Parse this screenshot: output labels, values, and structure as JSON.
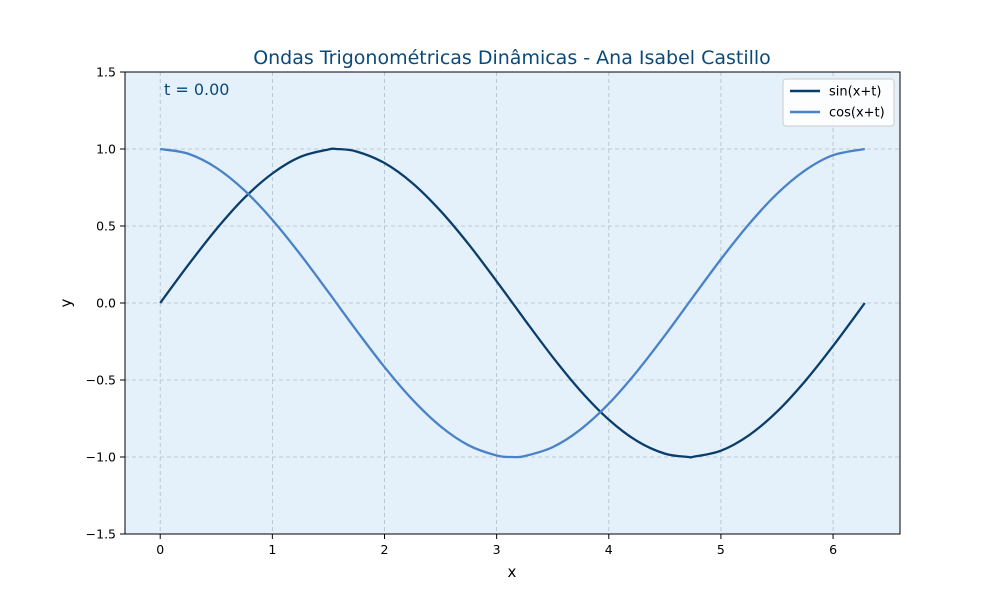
{
  "colors": {
    "plot_background": "#e5f1fa",
    "grid": "#b0bcc8",
    "title": "#0a4a7a",
    "annotation": "#0a4a7a"
  },
  "chart_data": {
    "type": "line",
    "title": "Ondas Trigonométricas Dinâmicas - Ana Isabel Castillo",
    "xlabel": "x",
    "ylabel": "y",
    "xlim": [
      -0.314,
      6.597
    ],
    "ylim": [
      -1.5,
      1.5
    ],
    "xticks": [
      0,
      1,
      2,
      3,
      4,
      5,
      6
    ],
    "xtick_labels": [
      "0",
      "1",
      "2",
      "3",
      "4",
      "5",
      "6"
    ],
    "yticks": [
      -1.5,
      -1.0,
      -0.5,
      0.0,
      0.5,
      1.0,
      1.5
    ],
    "ytick_labels": [
      "−1.5",
      "−1.0",
      "−0.5",
      "0.0",
      "0.5",
      "1.0",
      "1.5"
    ],
    "grid": true,
    "legend_position": "top-right",
    "annotation": "t = 0.00",
    "series": [
      {
        "name": "sin(x+t)",
        "color": "#0a3d6b",
        "x": [
          0,
          0.25,
          0.5,
          0.75,
          1.0,
          1.25,
          1.5,
          1.571,
          1.75,
          2.0,
          2.25,
          2.5,
          2.75,
          3.0,
          3.142,
          3.25,
          3.5,
          3.75,
          4.0,
          4.25,
          4.5,
          4.712,
          4.75,
          5.0,
          5.25,
          5.5,
          5.75,
          6.0,
          6.283
        ],
        "y": [
          0,
          0.247,
          0.479,
          0.682,
          0.841,
          0.949,
          0.997,
          1.0,
          0.984,
          0.909,
          0.778,
          0.598,
          0.382,
          0.141,
          0,
          -0.108,
          -0.351,
          -0.572,
          -0.757,
          -0.895,
          -0.978,
          -1.0,
          -0.999,
          -0.959,
          -0.859,
          -0.706,
          -0.508,
          -0.279,
          0
        ]
      },
      {
        "name": "cos(x+t)",
        "color": "#4a82c8",
        "x": [
          0,
          0.25,
          0.5,
          0.75,
          1.0,
          1.25,
          1.5,
          1.571,
          1.75,
          2.0,
          2.25,
          2.5,
          2.75,
          3.0,
          3.142,
          3.25,
          3.5,
          3.75,
          4.0,
          4.25,
          4.5,
          4.712,
          4.75,
          5.0,
          5.25,
          5.5,
          5.75,
          6.0,
          6.283
        ],
        "y": [
          1.0,
          0.969,
          0.878,
          0.732,
          0.54,
          0.315,
          0.071,
          0,
          -0.178,
          -0.416,
          -0.628,
          -0.801,
          -0.924,
          -0.99,
          -1.0,
          -0.994,
          -0.936,
          -0.82,
          -0.654,
          -0.446,
          -0.211,
          0,
          0.038,
          0.284,
          0.512,
          0.709,
          0.861,
          0.96,
          1.0
        ]
      }
    ]
  }
}
